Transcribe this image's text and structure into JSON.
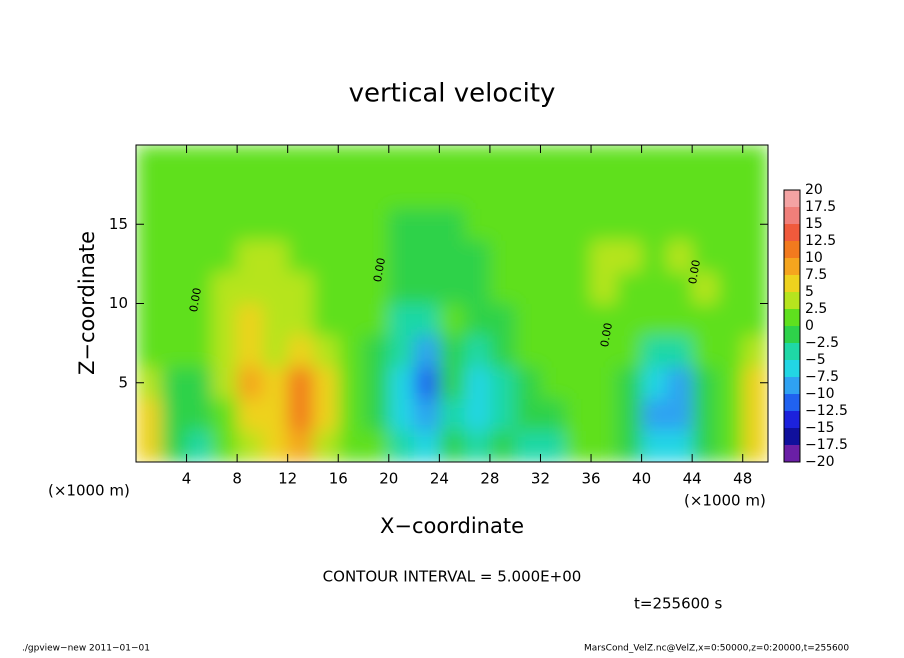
{
  "chart_data": {
    "type": "heatmap",
    "title": "vertical velocity",
    "xlabel": "X−coordinate",
    "ylabel": "Z−coordinate",
    "x_unit": "(×1000 m)",
    "y_unit": "(×1000 m)",
    "contour_label": "0.00",
    "contour_interval": "CONTOUR INTERVAL = 5.000E+00",
    "time": "t=255600 s",
    "footer_left": "./gpview−new   2011−01−01",
    "footer_right": "MarsCond_VelZ.nc@VelZ,x=0:50000,z=0:20000,t=255600",
    "xlim": [
      0,
      50
    ],
    "ylim": [
      0,
      20
    ],
    "xticks": [
      4,
      8,
      12,
      16,
      20,
      24,
      28,
      32,
      36,
      40,
      44,
      48
    ],
    "yticks": [
      5,
      10,
      15
    ],
    "x": [
      1,
      3,
      5,
      7,
      9,
      11,
      13,
      15,
      17,
      19,
      21,
      23,
      25,
      27,
      29,
      31,
      33,
      35,
      37,
      39,
      41,
      43,
      45,
      47,
      49
    ],
    "y": [
      1,
      3,
      5,
      7,
      9,
      11,
      13,
      15,
      17,
      19
    ],
    "z": [
      [
        6,
        -2,
        -3,
        0,
        4,
        5,
        9,
        4,
        1,
        0,
        -3,
        -7,
        -2,
        -4,
        -2,
        -3,
        -3,
        0,
        1,
        -1,
        -6,
        -6,
        -2,
        1,
        5
      ],
      [
        6,
        -2,
        -2,
        2,
        7,
        6,
        12,
        5,
        1,
        -1,
        -6,
        -10,
        -3,
        -6,
        -4,
        -2,
        -1,
        1,
        1,
        -2,
        -8,
        -9,
        -2,
        1,
        6
      ],
      [
        4,
        -1,
        -1,
        3,
        9,
        5,
        10,
        5,
        2,
        -1,
        -7,
        -12,
        -2,
        -6,
        -3,
        -1,
        0,
        1,
        1,
        -1,
        -6,
        -8,
        -1,
        1,
        6
      ],
      [
        2,
        0,
        1,
        3,
        7,
        4,
        6,
        3,
        1,
        -1,
        -5,
        -8,
        -1,
        -4,
        -2,
        0,
        1,
        1,
        1,
        0,
        -3,
        -4,
        0,
        1,
        3
      ],
      [
        1,
        0,
        2,
        3,
        5,
        3,
        4,
        2,
        1,
        0,
        -3,
        -4,
        0,
        -2,
        -1,
        0,
        1,
        1,
        1,
        1,
        0,
        0,
        1,
        1,
        2
      ],
      [
        1,
        1,
        2,
        3,
        4,
        3,
        3,
        2,
        1,
        0,
        -1,
        -2,
        -1,
        -1,
        0,
        0,
        1,
        2,
        3,
        2,
        1,
        2,
        3,
        2,
        1
      ],
      [
        1,
        1,
        2,
        2,
        3,
        3,
        2,
        2,
        1,
        0,
        -1,
        -1,
        -1,
        -1,
        0,
        0,
        1,
        2,
        3,
        3,
        2,
        3,
        2,
        1,
        1
      ],
      [
        1,
        1,
        1,
        2,
        2,
        2,
        2,
        1,
        1,
        0,
        -1,
        -1,
        -1,
        0,
        0,
        0,
        1,
        1,
        2,
        2,
        2,
        2,
        1,
        1,
        1
      ],
      [
        1,
        1,
        1,
        1,
        1,
        1,
        1,
        1,
        1,
        0,
        0,
        0,
        0,
        0,
        0,
        0,
        1,
        1,
        1,
        1,
        1,
        1,
        1,
        1,
        1
      ],
      [
        1,
        1,
        1,
        1,
        1,
        1,
        1,
        1,
        1,
        1,
        1,
        1,
        1,
        1,
        1,
        1,
        1,
        1,
        1,
        1,
        1,
        1,
        1,
        1,
        1
      ]
    ],
    "levels": [
      20,
      17.5,
      15,
      12.5,
      10,
      7.5,
      5,
      2.5,
      0,
      {
        "value": -2.5,
        "label": "−2.5"
      },
      {
        "value": -5,
        "label": "−5"
      },
      {
        "value": -7.5,
        "label": "−7.5"
      },
      {
        "value": -10,
        "label": "−10"
      },
      {
        "value": -12.5,
        "label": "−12.5"
      },
      {
        "value": -15,
        "label": "−15"
      },
      {
        "value": -17.5,
        "label": "−17.5"
      },
      {
        "value": -20,
        "label": "−20"
      }
    ],
    "colors": [
      "#f4a3a3",
      "#f07f7a",
      "#f05a3c",
      "#f27a1e",
      "#f5a51e",
      "#eed21e",
      "#b6e41e",
      "#5fe01e",
      "#2ed24a",
      "#1fd8a6",
      "#22d6e4",
      "#2fa2f2",
      "#2062f0",
      "#1c22dc",
      "#10109c",
      "#6a1fa6"
    ]
  }
}
